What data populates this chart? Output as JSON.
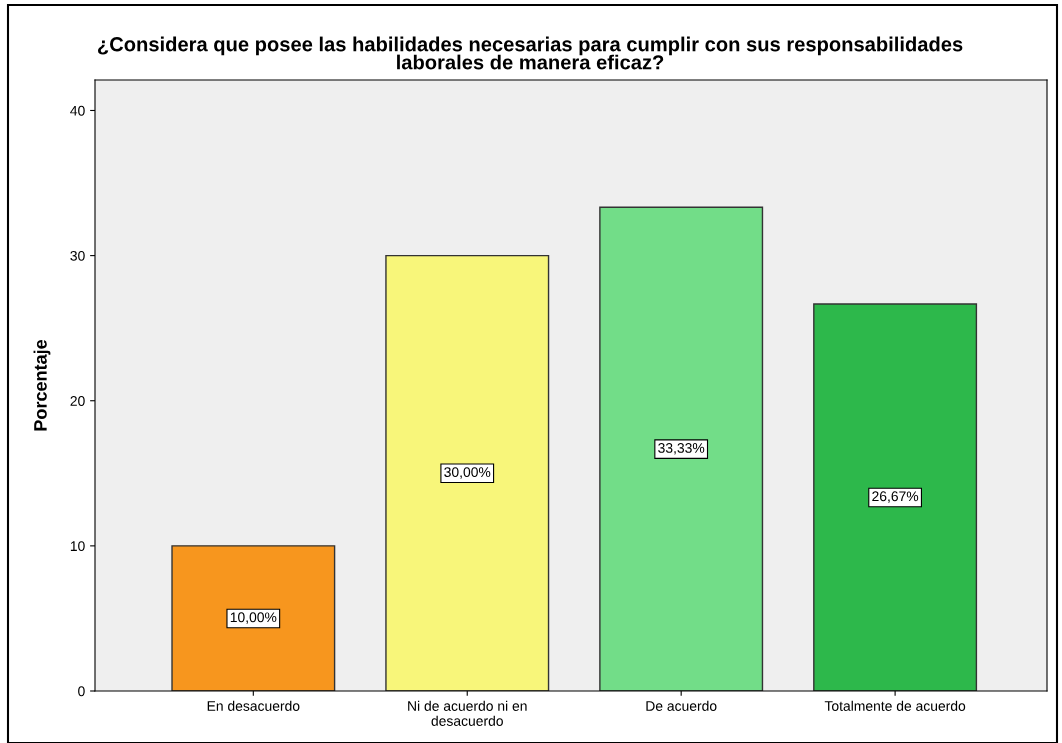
{
  "chart_data": {
    "type": "bar",
    "title": "¿Considera que posee las habilidades necesarias para cumplir con sus responsabilidades\nlaborales de manera eficaz?",
    "ylabel": "Porcentaje",
    "categories": [
      "En desacuerdo",
      "Ni de acuerdo ni en\ndesacuerdo",
      "De acuerdo",
      "Totalmente de acuerdo"
    ],
    "values": [
      10,
      30,
      33.33,
      26.67
    ],
    "value_labels": [
      "10,00%",
      "30,00%",
      "33,33%",
      "26,67%"
    ],
    "colors": [
      "#f7961e",
      "#f8f67a",
      "#72dd88",
      "#2db84b"
    ],
    "ylim": [
      0,
      42.1
    ],
    "yticks": [
      0,
      10,
      20,
      30,
      40
    ],
    "grid": false,
    "legend": false
  }
}
